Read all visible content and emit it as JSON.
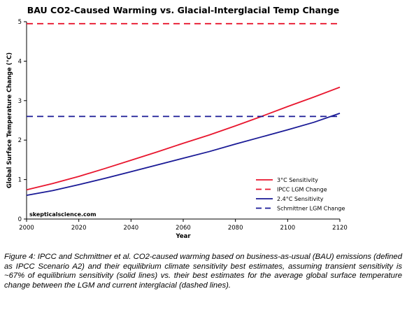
{
  "chart_data": {
    "type": "line",
    "title": "BAU CO2-Caused Warming vs. Glacial-Interglacial Temp Change",
    "xlabel": "Year",
    "ylabel": "Global Surface Temperature Change (°C)",
    "xlim": [
      2000,
      2120
    ],
    "ylim": [
      0,
      5
    ],
    "xticks": [
      2000,
      2020,
      2040,
      2060,
      2080,
      2100,
      2120
    ],
    "yticks": [
      0,
      1,
      2,
      3,
      4,
      5
    ],
    "grid": false,
    "legend_position": "bottom-right",
    "series": [
      {
        "name": "3°C Sensitivity",
        "color": "#e8162e",
        "style": "solid",
        "x": [
          2000,
          2010,
          2020,
          2030,
          2040,
          2050,
          2060,
          2070,
          2080,
          2090,
          2100,
          2110,
          2120
        ],
        "y": [
          0.74,
          0.9,
          1.08,
          1.28,
          1.49,
          1.7,
          1.92,
          2.13,
          2.36,
          2.6,
          2.85,
          3.09,
          3.34
        ]
      },
      {
        "name": "IPCC LGM Change",
        "color": "#e8162e",
        "style": "dashed",
        "x": [
          2000,
          2120
        ],
        "y": [
          4.95,
          4.95
        ]
      },
      {
        "name": "2.4°C Sensitivity",
        "color": "#1a1a96",
        "style": "solid",
        "x": [
          2000,
          2010,
          2020,
          2030,
          2040,
          2050,
          2060,
          2070,
          2080,
          2090,
          2100,
          2110,
          2120
        ],
        "y": [
          0.6,
          0.72,
          0.87,
          1.03,
          1.2,
          1.37,
          1.54,
          1.71,
          1.9,
          2.08,
          2.26,
          2.45,
          2.68
        ]
      },
      {
        "name": "Schmittner LGM Change",
        "color": "#1a1a96",
        "style": "dashed",
        "x": [
          2000,
          2120
        ],
        "y": [
          2.6,
          2.6
        ]
      }
    ],
    "watermark": "skepticalscience.com"
  },
  "caption": "Figure 4: IPCC and Schmittner et al. CO2-caused warming based on business-as-usual (BAU) emissions (defined as IPCC Scenario A2) and their equilibrium climate sensitivity best estimates, assuming transient sensitivity is ~67% of equilibrium sensitivity (solid lines) vs. their best estimates for the average global surface temperature change between the LGM and current interglacial (dashed lines)."
}
